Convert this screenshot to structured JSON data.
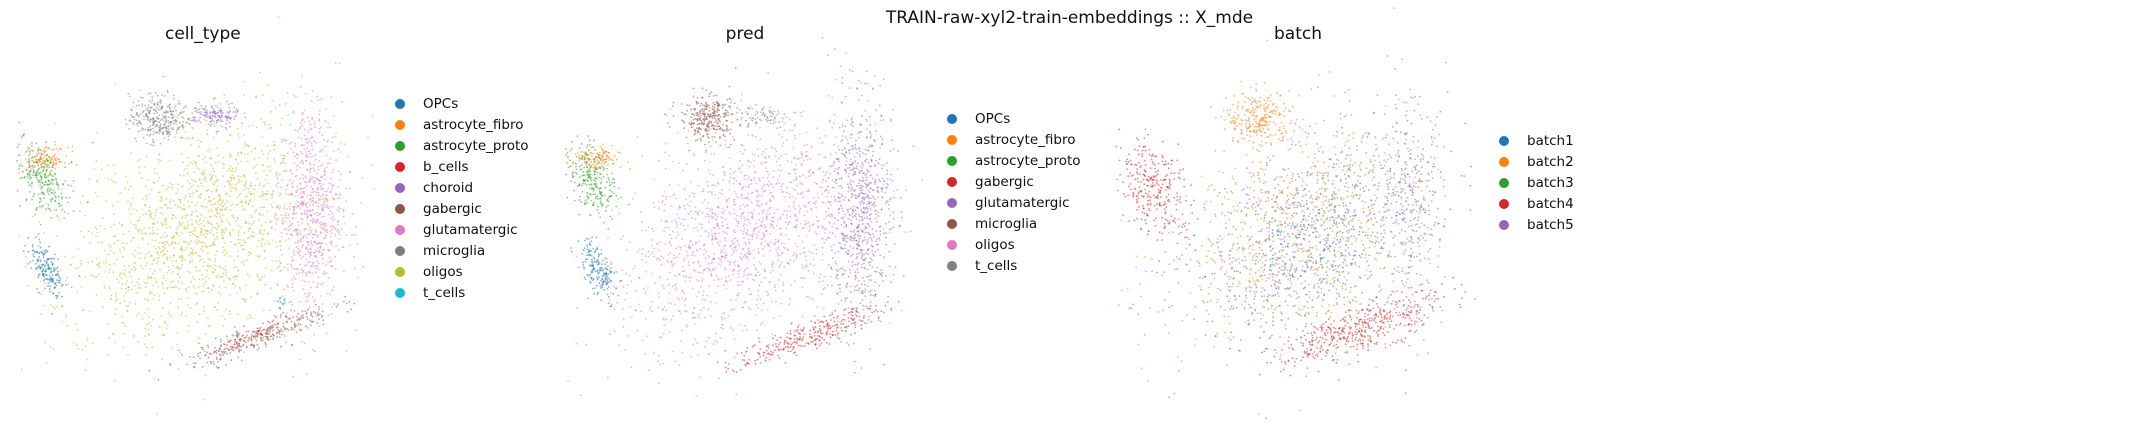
{
  "figure": {
    "suptitle": "TRAIN-raw-xyl2-train-embeddings :: X_mde"
  },
  "panels": [
    {
      "title": "cell_type",
      "legend": [
        {
          "label": "OPCs",
          "color": "#1f77b4"
        },
        {
          "label": "astrocyte_fibro",
          "color": "#ff7f0e"
        },
        {
          "label": "astrocyte_proto",
          "color": "#2ca02c"
        },
        {
          "label": "b_cells",
          "color": "#d62728"
        },
        {
          "label": "choroid",
          "color": "#9467bd"
        },
        {
          "label": "gabergic",
          "color": "#8c564b"
        },
        {
          "label": "glutamatergic",
          "color": "#e377c2"
        },
        {
          "label": "microglia",
          "color": "#7f7f7f"
        },
        {
          "label": "oligos",
          "color": "#bcbd22"
        },
        {
          "label": "t_cells",
          "color": "#17becf"
        }
      ]
    },
    {
      "title": "pred",
      "legend": [
        {
          "label": "OPCs",
          "color": "#1f77b4"
        },
        {
          "label": "astrocyte_fibro",
          "color": "#ff7f0e"
        },
        {
          "label": "astrocyte_proto",
          "color": "#2ca02c"
        },
        {
          "label": "gabergic",
          "color": "#d62728"
        },
        {
          "label": "glutamatergic",
          "color": "#9467bd"
        },
        {
          "label": "microglia",
          "color": "#8c564b"
        },
        {
          "label": "oligos",
          "color": "#e377c2"
        },
        {
          "label": "t_cells",
          "color": "#7f7f7f"
        }
      ]
    },
    {
      "title": "batch",
      "legend": [
        {
          "label": "batch1",
          "color": "#1f77b4"
        },
        {
          "label": "batch2",
          "color": "#ff7f0e"
        },
        {
          "label": "batch3",
          "color": "#2ca02c"
        },
        {
          "label": "batch4",
          "color": "#d62728"
        },
        {
          "label": "batch5",
          "color": "#9467bd"
        }
      ]
    }
  ],
  "chart_data": [
    {
      "type": "scatter",
      "title": "cell_type",
      "xlabel": "",
      "ylabel": "",
      "grid": false,
      "axes_visible": false,
      "legend_placement": "right",
      "clusters": [
        {
          "label": "oligos",
          "color": "#bcbd22",
          "cx": 0.0,
          "cy": -0.05,
          "sx": 0.32,
          "sy": 0.48,
          "rot": -40,
          "n": 1500
        },
        {
          "label": "glutamatergic",
          "color": "#e377c2",
          "cx": 0.72,
          "cy": 0.1,
          "sx": 0.1,
          "sy": 0.42,
          "rot": 0,
          "n": 700
        },
        {
          "label": "microglia",
          "color": "#7f7f7f",
          "cx": -0.23,
          "cy": 0.82,
          "sx": 0.09,
          "sy": 0.09,
          "rot": 0,
          "n": 300
        },
        {
          "label": "gabergic",
          "color": "#8c564b",
          "cx": 0.4,
          "cy": -0.85,
          "sx": 0.25,
          "sy": 0.05,
          "rot": 25,
          "n": 300
        },
        {
          "label": "astrocyte_proto",
          "color": "#2ca02c",
          "cx": -0.95,
          "cy": 0.35,
          "sx": 0.07,
          "sy": 0.14,
          "rot": 15,
          "n": 250
        },
        {
          "label": "astrocyte_fibro",
          "color": "#ff7f0e",
          "cx": -0.93,
          "cy": 0.5,
          "sx": 0.07,
          "sy": 0.05,
          "rot": 0,
          "n": 120
        },
        {
          "label": "OPCs",
          "color": "#1f77b4",
          "cx": -0.92,
          "cy": -0.35,
          "sx": 0.04,
          "sy": 0.12,
          "rot": 20,
          "n": 180
        },
        {
          "label": "choroid",
          "color": "#9467bd",
          "cx": 0.11,
          "cy": 0.84,
          "sx": 0.08,
          "sy": 0.05,
          "rot": 0,
          "n": 150
        },
        {
          "label": "b_cells",
          "color": "#d62728",
          "cx": 0.35,
          "cy": -0.88,
          "sx": 0.12,
          "sy": 0.03,
          "rot": 25,
          "n": 60
        },
        {
          "label": "t_cells",
          "color": "#17becf",
          "cx": 0.55,
          "cy": -0.6,
          "sx": 0.02,
          "sy": 0.02,
          "rot": 0,
          "n": 15
        }
      ]
    },
    {
      "type": "scatter",
      "title": "pred",
      "xlabel": "",
      "ylabel": "",
      "grid": false,
      "axes_visible": false,
      "legend_placement": "right",
      "clusters": [
        {
          "label": "oligos",
          "color": "#e377c2",
          "cx": 0.0,
          "cy": -0.05,
          "sx": 0.32,
          "sy": 0.48,
          "rot": -40,
          "n": 1500
        },
        {
          "label": "glutamatergic",
          "color": "#9467bd",
          "cx": 0.72,
          "cy": 0.1,
          "sx": 0.1,
          "sy": 0.42,
          "rot": 0,
          "n": 700
        },
        {
          "label": "microglia",
          "color": "#8c564b",
          "cx": -0.23,
          "cy": 0.82,
          "sx": 0.09,
          "sy": 0.09,
          "rot": 0,
          "n": 300
        },
        {
          "label": "gabergic",
          "color": "#d62728",
          "cx": 0.4,
          "cy": -0.85,
          "sx": 0.25,
          "sy": 0.05,
          "rot": 25,
          "n": 300
        },
        {
          "label": "astrocyte_proto",
          "color": "#2ca02c",
          "cx": -0.95,
          "cy": 0.35,
          "sx": 0.07,
          "sy": 0.14,
          "rot": 15,
          "n": 250
        },
        {
          "label": "astrocyte_fibro",
          "color": "#ff7f0e",
          "cx": -0.93,
          "cy": 0.5,
          "sx": 0.07,
          "sy": 0.05,
          "rot": 0,
          "n": 120
        },
        {
          "label": "OPCs",
          "color": "#1f77b4",
          "cx": -0.92,
          "cy": -0.35,
          "sx": 0.04,
          "sy": 0.12,
          "rot": 20,
          "n": 180
        },
        {
          "label": "t_cells",
          "color": "#7f7f7f",
          "cx": 0.11,
          "cy": 0.84,
          "sx": 0.08,
          "sy": 0.05,
          "rot": 0,
          "n": 60
        }
      ]
    },
    {
      "type": "scatter",
      "title": "batch",
      "xlabel": "",
      "ylabel": "",
      "grid": false,
      "axes_visible": false,
      "legend_placement": "right",
      "clusters": [
        {
          "label": "batch2",
          "color": "#ff7f0e",
          "cx": 0.0,
          "cy": -0.05,
          "sx": 0.32,
          "sy": 0.48,
          "rot": -40,
          "n": 700
        },
        {
          "label": "batch5",
          "color": "#9467bd",
          "cx": 0.02,
          "cy": -0.05,
          "sx": 0.32,
          "sy": 0.48,
          "rot": -40,
          "n": 500
        },
        {
          "label": "batch1",
          "color": "#1f77b4",
          "cx": 0.1,
          "cy": -0.15,
          "sx": 0.25,
          "sy": 0.4,
          "rot": -40,
          "n": 400
        },
        {
          "label": "batch4",
          "color": "#d62728",
          "cx": 0.4,
          "cy": -0.8,
          "sx": 0.28,
          "sy": 0.08,
          "rot": 25,
          "n": 450
        },
        {
          "label": "batch4",
          "color": "#d62728",
          "cx": -0.9,
          "cy": 0.3,
          "sx": 0.1,
          "sy": 0.2,
          "rot": 15,
          "n": 300
        },
        {
          "label": "batch5",
          "color": "#9467bd",
          "cx": 0.72,
          "cy": 0.1,
          "sx": 0.1,
          "sy": 0.42,
          "rot": 0,
          "n": 300
        },
        {
          "label": "batch2",
          "color": "#ff7f0e",
          "cx": -0.23,
          "cy": 0.82,
          "sx": 0.1,
          "sy": 0.1,
          "rot": 0,
          "n": 250
        },
        {
          "label": "batch3",
          "color": "#2ca02c",
          "cx": 0.2,
          "cy": 0.0,
          "sx": 0.3,
          "sy": 0.45,
          "rot": -40,
          "n": 150
        }
      ]
    }
  ]
}
